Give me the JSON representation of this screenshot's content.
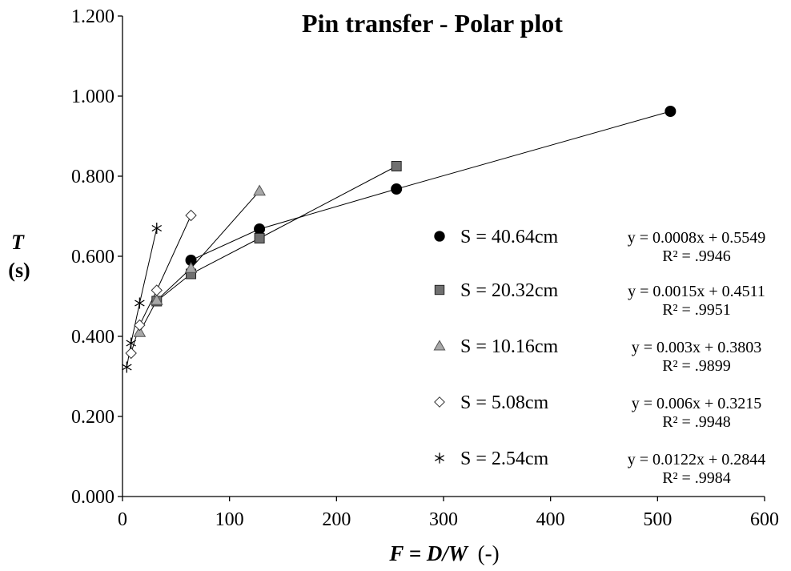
{
  "chart_data": {
    "type": "scatter",
    "title": "Pin transfer - Polar plot",
    "xlabel": {
      "main": "F = D/W",
      "unit": "(-)"
    },
    "ylabel": {
      "symbol": "T",
      "unit": "(s)"
    },
    "xlim": [
      0,
      600
    ],
    "ylim": [
      0,
      1.2
    ],
    "x_ticks": [
      "0",
      "100",
      "200",
      "300",
      "400",
      "500",
      "600"
    ],
    "y_ticks": [
      "0.000",
      "0.200",
      "0.400",
      "0.600",
      "0.800",
      "1.000",
      "1.200"
    ],
    "grid": false,
    "legend_position": "right",
    "series": [
      {
        "name": "S = 40.64cm",
        "marker": "circle",
        "fill": "#000000",
        "x": [
          64,
          128,
          256,
          512
        ],
        "y": [
          0.59,
          0.668,
          0.768,
          0.962
        ],
        "equation": "y = 0.0008x + 0.5549",
        "r2": "R² = .9946"
      },
      {
        "name": "S = 20.32cm",
        "marker": "square",
        "fill": "#707070",
        "x": [
          32,
          64,
          128,
          256
        ],
        "y": [
          0.488,
          0.556,
          0.645,
          0.825
        ],
        "equation": "y = 0.0015x + 0.4511",
        "r2": "R² = .9951"
      },
      {
        "name": "S = 10.16cm",
        "marker": "triangle",
        "fill": "#a8a8a8",
        "x": [
          16,
          32,
          64,
          128
        ],
        "y": [
          0.41,
          0.49,
          0.57,
          0.763
        ],
        "equation": "y = 0.003x + 0.3803",
        "r2": "R² = .9899"
      },
      {
        "name": "S = 5.08cm",
        "marker": "diamond",
        "fill": "#ffffff",
        "x": [
          8,
          16,
          32,
          64
        ],
        "y": [
          0.358,
          0.428,
          0.515,
          0.702
        ],
        "equation": "y = 0.006x + 0.3215",
        "r2": "R² = .9948"
      },
      {
        "name": "S = 2.54cm",
        "marker": "asterisk",
        "fill": "none",
        "x": [
          4,
          8,
          16,
          32
        ],
        "y": [
          0.323,
          0.383,
          0.483,
          0.67
        ],
        "equation": "y = 0.0122x + 0.2844",
        "r2": "R² = .9984"
      }
    ]
  }
}
